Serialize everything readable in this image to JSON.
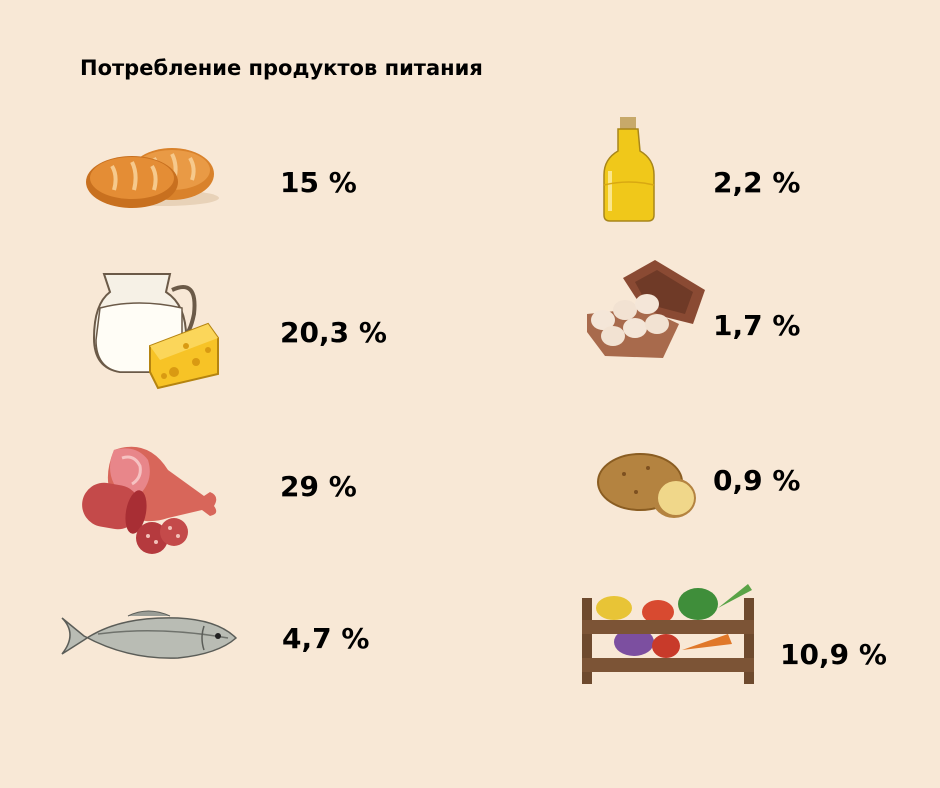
{
  "title": "Потребление продуктов питания",
  "chart_data": {
    "type": "table",
    "title": "Потребление продуктов питания",
    "items": [
      {
        "icon": "bread-icon",
        "label": "15 %",
        "value": 15
      },
      {
        "icon": "milk-cheese-icon",
        "label": "20,3 %",
        "value": 20.3
      },
      {
        "icon": "meat-icon",
        "label": "29 %",
        "value": 29
      },
      {
        "icon": "fish-icon",
        "label": "4,7 %",
        "value": 4.7
      },
      {
        "icon": "oil-bottle-icon",
        "label": "2,2 %",
        "value": 2.2
      },
      {
        "icon": "eggs-icon",
        "label": "1,7 %",
        "value": 1.7
      },
      {
        "icon": "potato-icon",
        "label": "0,9 %",
        "value": 0.9
      },
      {
        "icon": "vegetables-crate-icon",
        "label": "10,9 %",
        "value": 10.9
      }
    ]
  }
}
